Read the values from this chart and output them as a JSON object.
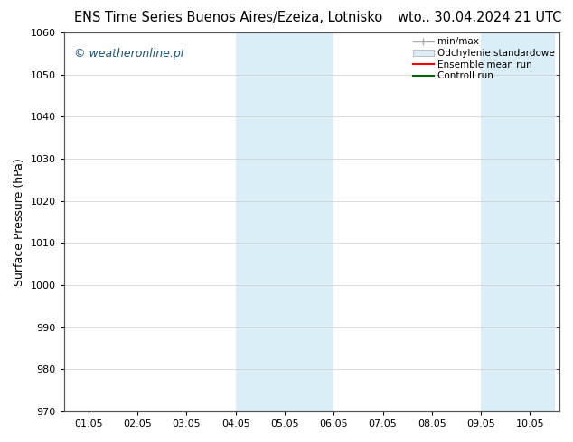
{
  "title_left": "ENS Time Series Buenos Aires/Ezeiza, Lotnisko",
  "title_right": "wto.. 30.04.2024 21 UTC",
  "ylabel": "Surface Pressure (hPa)",
  "ylim": [
    970,
    1060
  ],
  "yticks": [
    970,
    980,
    990,
    1000,
    1010,
    1020,
    1030,
    1040,
    1050,
    1060
  ],
  "xtick_labels": [
    "01.05",
    "02.05",
    "03.05",
    "04.05",
    "05.05",
    "06.05",
    "07.05",
    "08.05",
    "09.05",
    "10.05"
  ],
  "xtick_positions": [
    0,
    1,
    2,
    3,
    4,
    5,
    6,
    7,
    8,
    9
  ],
  "xlim": [
    -0.5,
    9.85
  ],
  "shaded_regions": [
    {
      "x_start": 3.0,
      "x_end": 3.5
    },
    {
      "x_start": 3.5,
      "x_end": 5.0
    },
    {
      "x_start": 8.0,
      "x_end": 8.5
    },
    {
      "x_start": 8.5,
      "x_end": 9.5
    }
  ],
  "shade_color_dark": "#c5dff0",
  "shade_color_light": "#deeefa",
  "watermark_text": "© weatheronline.pl",
  "watermark_color": "#1a5276",
  "legend_entries": [
    {
      "label": "min/max"
    },
    {
      "label": "Odchylenie standardowe"
    },
    {
      "label": "Ensemble mean run"
    },
    {
      "label": "Controll run"
    }
  ],
  "bg_color": "#ffffff",
  "grid_color": "#cccccc",
  "title_fontsize": 10.5,
  "tick_fontsize": 8,
  "ylabel_fontsize": 9,
  "watermark_fontsize": 9
}
